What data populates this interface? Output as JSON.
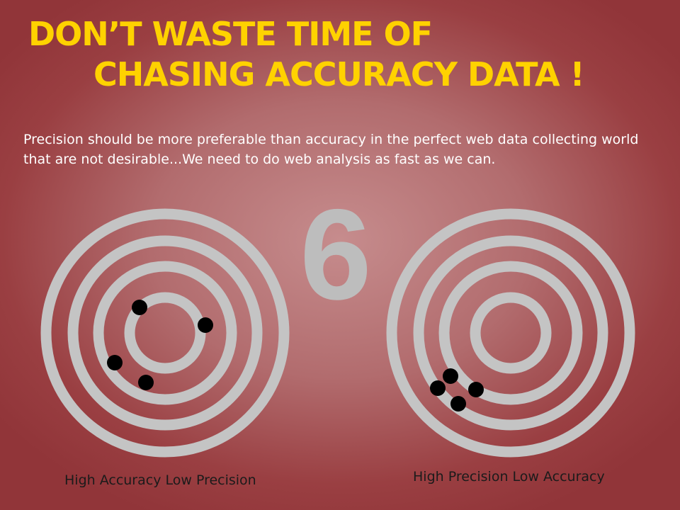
{
  "title": {
    "line1": "DON’T WASTE TIME OF",
    "line2": "CHASING ACCURACY DATA !"
  },
  "subtitle": "Precision should be more preferable than accuracy in the perfect web data collecting world that are not desirable...We need to do web analysis as fast as we can.",
  "slide_number": "6",
  "colors": {
    "headline": "#ffd200",
    "ring": "#c4c4c4",
    "dot": "#000000"
  },
  "targets": [
    {
      "caption": "High Accuracy Low Precision"
    },
    {
      "caption": "High Precision Low Accuracy"
    }
  ]
}
